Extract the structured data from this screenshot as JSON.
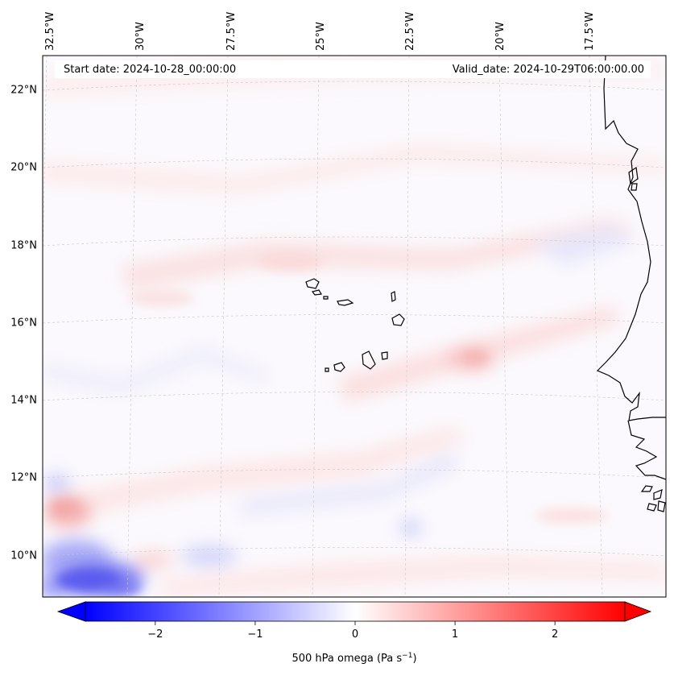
{
  "map": {
    "start_label": "Start date: 2024-10-28_00:00:00",
    "valid_label": "Valid_date: 2024-10-29T06:00:00.00",
    "lon_labels": [
      "32.5°W",
      "30°W",
      "27.5°W",
      "25°W",
      "22.5°W",
      "20°W",
      "17.5°W"
    ],
    "lat_labels": [
      "22°N",
      "20°N",
      "18°N",
      "16°N",
      "14°N",
      "12°N",
      "10°N"
    ],
    "gridlines": true,
    "coastline_color": "#000000"
  },
  "colorbar": {
    "label_prefix": "500 hPa omega (Pa s",
    "label_exp": "−1",
    "label_suffix": ")",
    "min": -2.7,
    "max": 2.7,
    "ticks": [
      {
        "value": -2,
        "label": "−2"
      },
      {
        "value": -1,
        "label": "−1"
      },
      {
        "value": 0,
        "label": "0"
      },
      {
        "value": 1,
        "label": "1"
      },
      {
        "value": 2,
        "label": "2"
      }
    ],
    "color_low": "#0000ff",
    "color_mid": "#ffffff",
    "color_high": "#ff0000",
    "extend": "both"
  }
}
